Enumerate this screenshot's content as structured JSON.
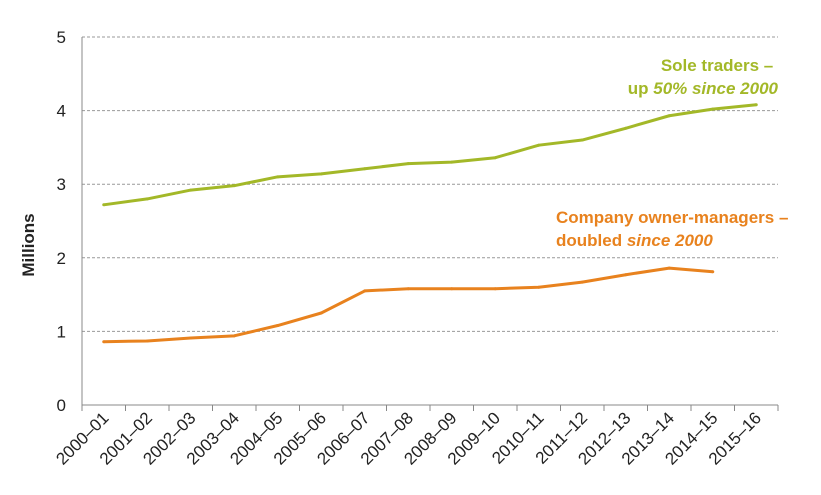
{
  "chart_data": {
    "type": "line",
    "title": "",
    "xlabel": "",
    "ylabel": "Millions",
    "ylim": [
      0,
      5
    ],
    "yticks": [
      0,
      1,
      2,
      3,
      4,
      5
    ],
    "grid": true,
    "categories": [
      "2000–01",
      "2001–02",
      "2002–03",
      "2003–04",
      "2004–05",
      "2005–06",
      "2006–07",
      "2007–08",
      "2008–09",
      "2009–10",
      "2010–11",
      "2011–12",
      "2012–13",
      "2013–14",
      "2014–15",
      "2015–16"
    ],
    "series": [
      {
        "color": "#a3b828",
        "values": [
          2.72,
          2.8,
          2.92,
          2.98,
          3.1,
          3.14,
          3.21,
          3.28,
          3.3,
          3.36,
          3.53,
          3.6,
          3.76,
          3.93,
          4.02,
          4.08
        ],
        "annotation": {
          "line1": "Sole traders –",
          "line2_prefix": "up ",
          "line2_italic": "50% since 2000"
        }
      },
      {
        "color": "#e8821e",
        "values": [
          0.86,
          0.87,
          0.91,
          0.94,
          1.08,
          1.25,
          1.55,
          1.58,
          1.58,
          1.58,
          1.6,
          1.67,
          1.77,
          1.86,
          1.81,
          null
        ],
        "annotation": {
          "line1": "Company owner-managers –",
          "line2_prefix": "doubled ",
          "line2_italic": "since 2000"
        }
      }
    ]
  },
  "colors": {
    "grid": "#999999",
    "axis": "#888888"
  }
}
